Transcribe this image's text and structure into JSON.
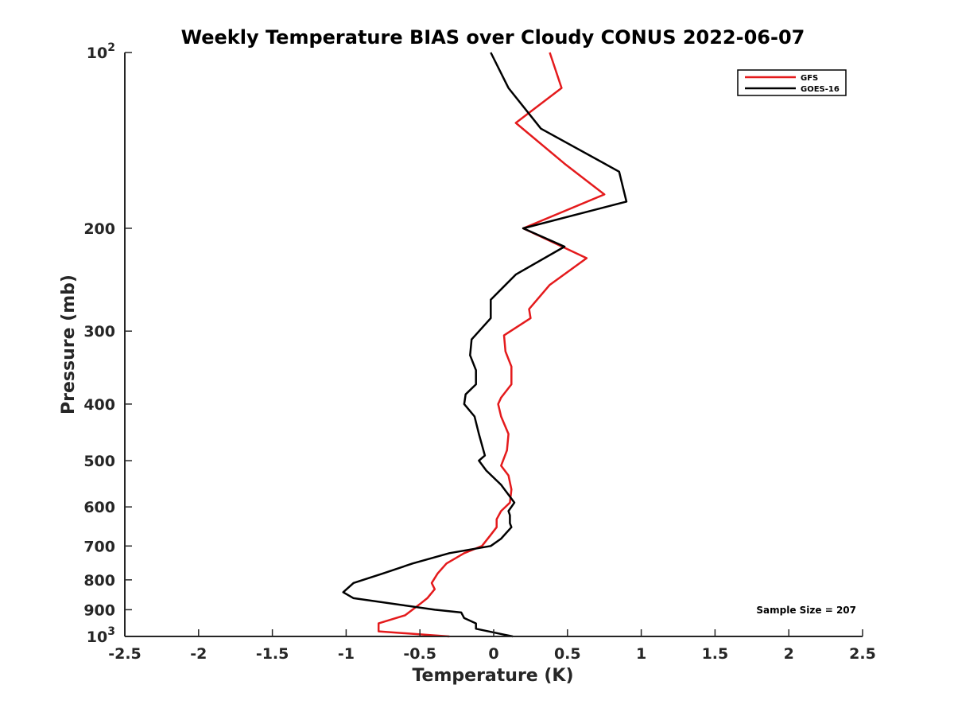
{
  "chart_data": {
    "type": "line",
    "title": "Weekly Temperature BIAS over Cloudy CONUS 2022-06-07",
    "xlabel": "Temperature (K)",
    "ylabel": "Pressure (mb)",
    "xlim": [
      -2.5,
      2.5
    ],
    "ylim": [
      1000,
      100
    ],
    "y_scale": "log",
    "y_reversed": true,
    "grid": false,
    "legend_position": "top-right",
    "x_ticks": [
      -2.5,
      -2,
      -1.5,
      -1,
      -0.5,
      0,
      0.5,
      1,
      1.5,
      2,
      2.5
    ],
    "x_tick_labels": [
      "-2.5",
      "-2",
      "-1.5",
      "-1",
      "-0.5",
      "0",
      "0.5",
      "1",
      "1.5",
      "2",
      "2.5"
    ],
    "y_ticks": [
      100,
      200,
      300,
      400,
      500,
      600,
      700,
      800,
      900,
      1000
    ],
    "y_tick_labels": [
      {
        "base": "10",
        "exp": "2"
      },
      {
        "base": "200",
        "exp": ""
      },
      {
        "base": "300",
        "exp": ""
      },
      {
        "base": "400",
        "exp": ""
      },
      {
        "base": "500",
        "exp": ""
      },
      {
        "base": "600",
        "exp": ""
      },
      {
        "base": "700",
        "exp": ""
      },
      {
        "base": "800",
        "exp": ""
      },
      {
        "base": "900",
        "exp": ""
      },
      {
        "base": "10",
        "exp": "3"
      }
    ],
    "annotation": "Sample Size = 207",
    "series": [
      {
        "name": "GFS",
        "color": "#e41a1c",
        "x": [
          0.38,
          0.46,
          0.15,
          0.48,
          0.75,
          0.2,
          0.63,
          0.38,
          0.24,
          0.25,
          0.07,
          0.08,
          0.12,
          0.12,
          0.05,
          0.03,
          0.05,
          0.1,
          0.09,
          0.05,
          0.1,
          0.12,
          0.11,
          0.05,
          0.02,
          0.02,
          -0.02,
          -0.08,
          -0.2,
          -0.32,
          -0.38,
          -0.42,
          -0.4,
          -0.45,
          -0.5,
          -0.6,
          -0.78,
          -0.78,
          -0.3
        ],
        "y": [
          100,
          115,
          132,
          155,
          175,
          200,
          225,
          250,
          275,
          285,
          305,
          325,
          345,
          370,
          390,
          400,
          420,
          450,
          480,
          510,
          530,
          560,
          590,
          610,
          630,
          650,
          670,
          700,
          720,
          750,
          780,
          810,
          830,
          860,
          880,
          920,
          950,
          980,
          1000
        ]
      },
      {
        "name": "GOES-16",
        "color": "#000000",
        "x": [
          -0.02,
          0.1,
          0.32,
          0.85,
          0.9,
          0.2,
          0.48,
          0.15,
          -0.02,
          -0.02,
          -0.15,
          -0.16,
          -0.12,
          -0.12,
          -0.19,
          -0.2,
          -0.13,
          -0.1,
          -0.06,
          -0.1,
          -0.05,
          0.05,
          0.14,
          0.1,
          0.11,
          0.11,
          0.12,
          0.05,
          -0.02,
          -0.3,
          -0.55,
          -0.75,
          -0.95,
          -1.02,
          -0.95,
          -0.4,
          -0.22,
          -0.2,
          -0.12,
          -0.12,
          0.13
        ],
        "y": [
          100,
          115,
          135,
          160,
          180,
          200,
          215,
          240,
          265,
          285,
          310,
          330,
          350,
          370,
          385,
          400,
          420,
          450,
          490,
          500,
          520,
          550,
          590,
          610,
          620,
          640,
          650,
          680,
          700,
          720,
          750,
          780,
          810,
          840,
          860,
          900,
          910,
          930,
          950,
          970,
          1000
        ]
      }
    ]
  }
}
